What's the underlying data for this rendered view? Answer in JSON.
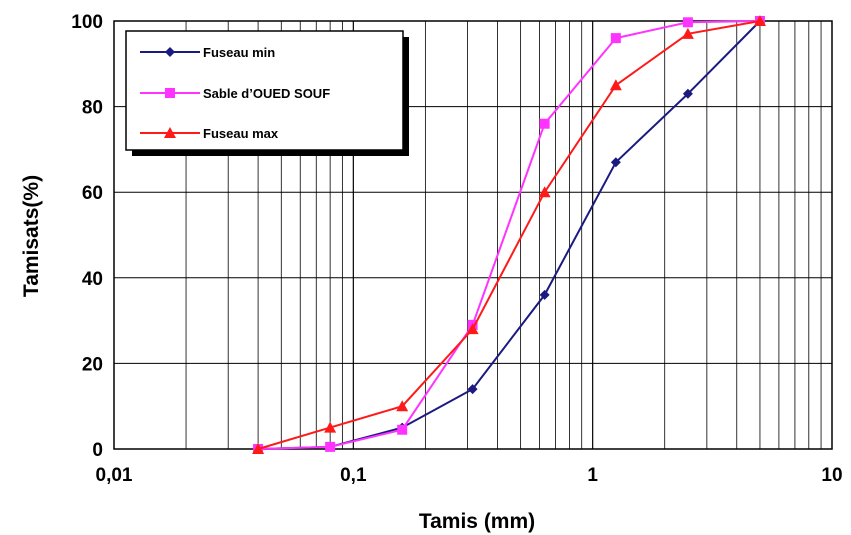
{
  "chart_data": {
    "type": "line",
    "xscale": "log",
    "xlim": [
      0.01,
      10
    ],
    "ylim": [
      0,
      100
    ],
    "grid": true,
    "legend_position": "top-left",
    "xlabel": "Tamis (mm)",
    "ylabel": "Tamisats(%)",
    "x_tick_labels": [
      "0,01",
      "0,1",
      "1",
      "10"
    ],
    "y_tick_labels": [
      "0",
      "20",
      "40",
      "60",
      "80",
      "100"
    ],
    "series": [
      {
        "name": "Fuseau min",
        "color": "#1a1a80",
        "marker": "diamond",
        "x": [
          0.04,
          0.08,
          0.16,
          0.315,
          0.63,
          1.25,
          2.5,
          5
        ],
        "y": [
          0,
          0.5,
          5,
          14,
          36,
          67,
          83,
          100
        ]
      },
      {
        "name": "Sable d’OUED SOUF",
        "color": "#ff33ff",
        "marker": "square",
        "x": [
          0.04,
          0.08,
          0.16,
          0.315,
          0.63,
          1.25,
          2.5,
          5
        ],
        "y": [
          0,
          0.5,
          4.5,
          29,
          76,
          96,
          99.7,
          100
        ]
      },
      {
        "name": "Fuseau max",
        "color": "#ff1a1a",
        "marker": "triangle",
        "x": [
          0.04,
          0.08,
          0.16,
          0.315,
          0.63,
          1.25,
          2.5,
          5
        ],
        "y": [
          0,
          5,
          10,
          28,
          60,
          85,
          97,
          100
        ]
      }
    ]
  }
}
